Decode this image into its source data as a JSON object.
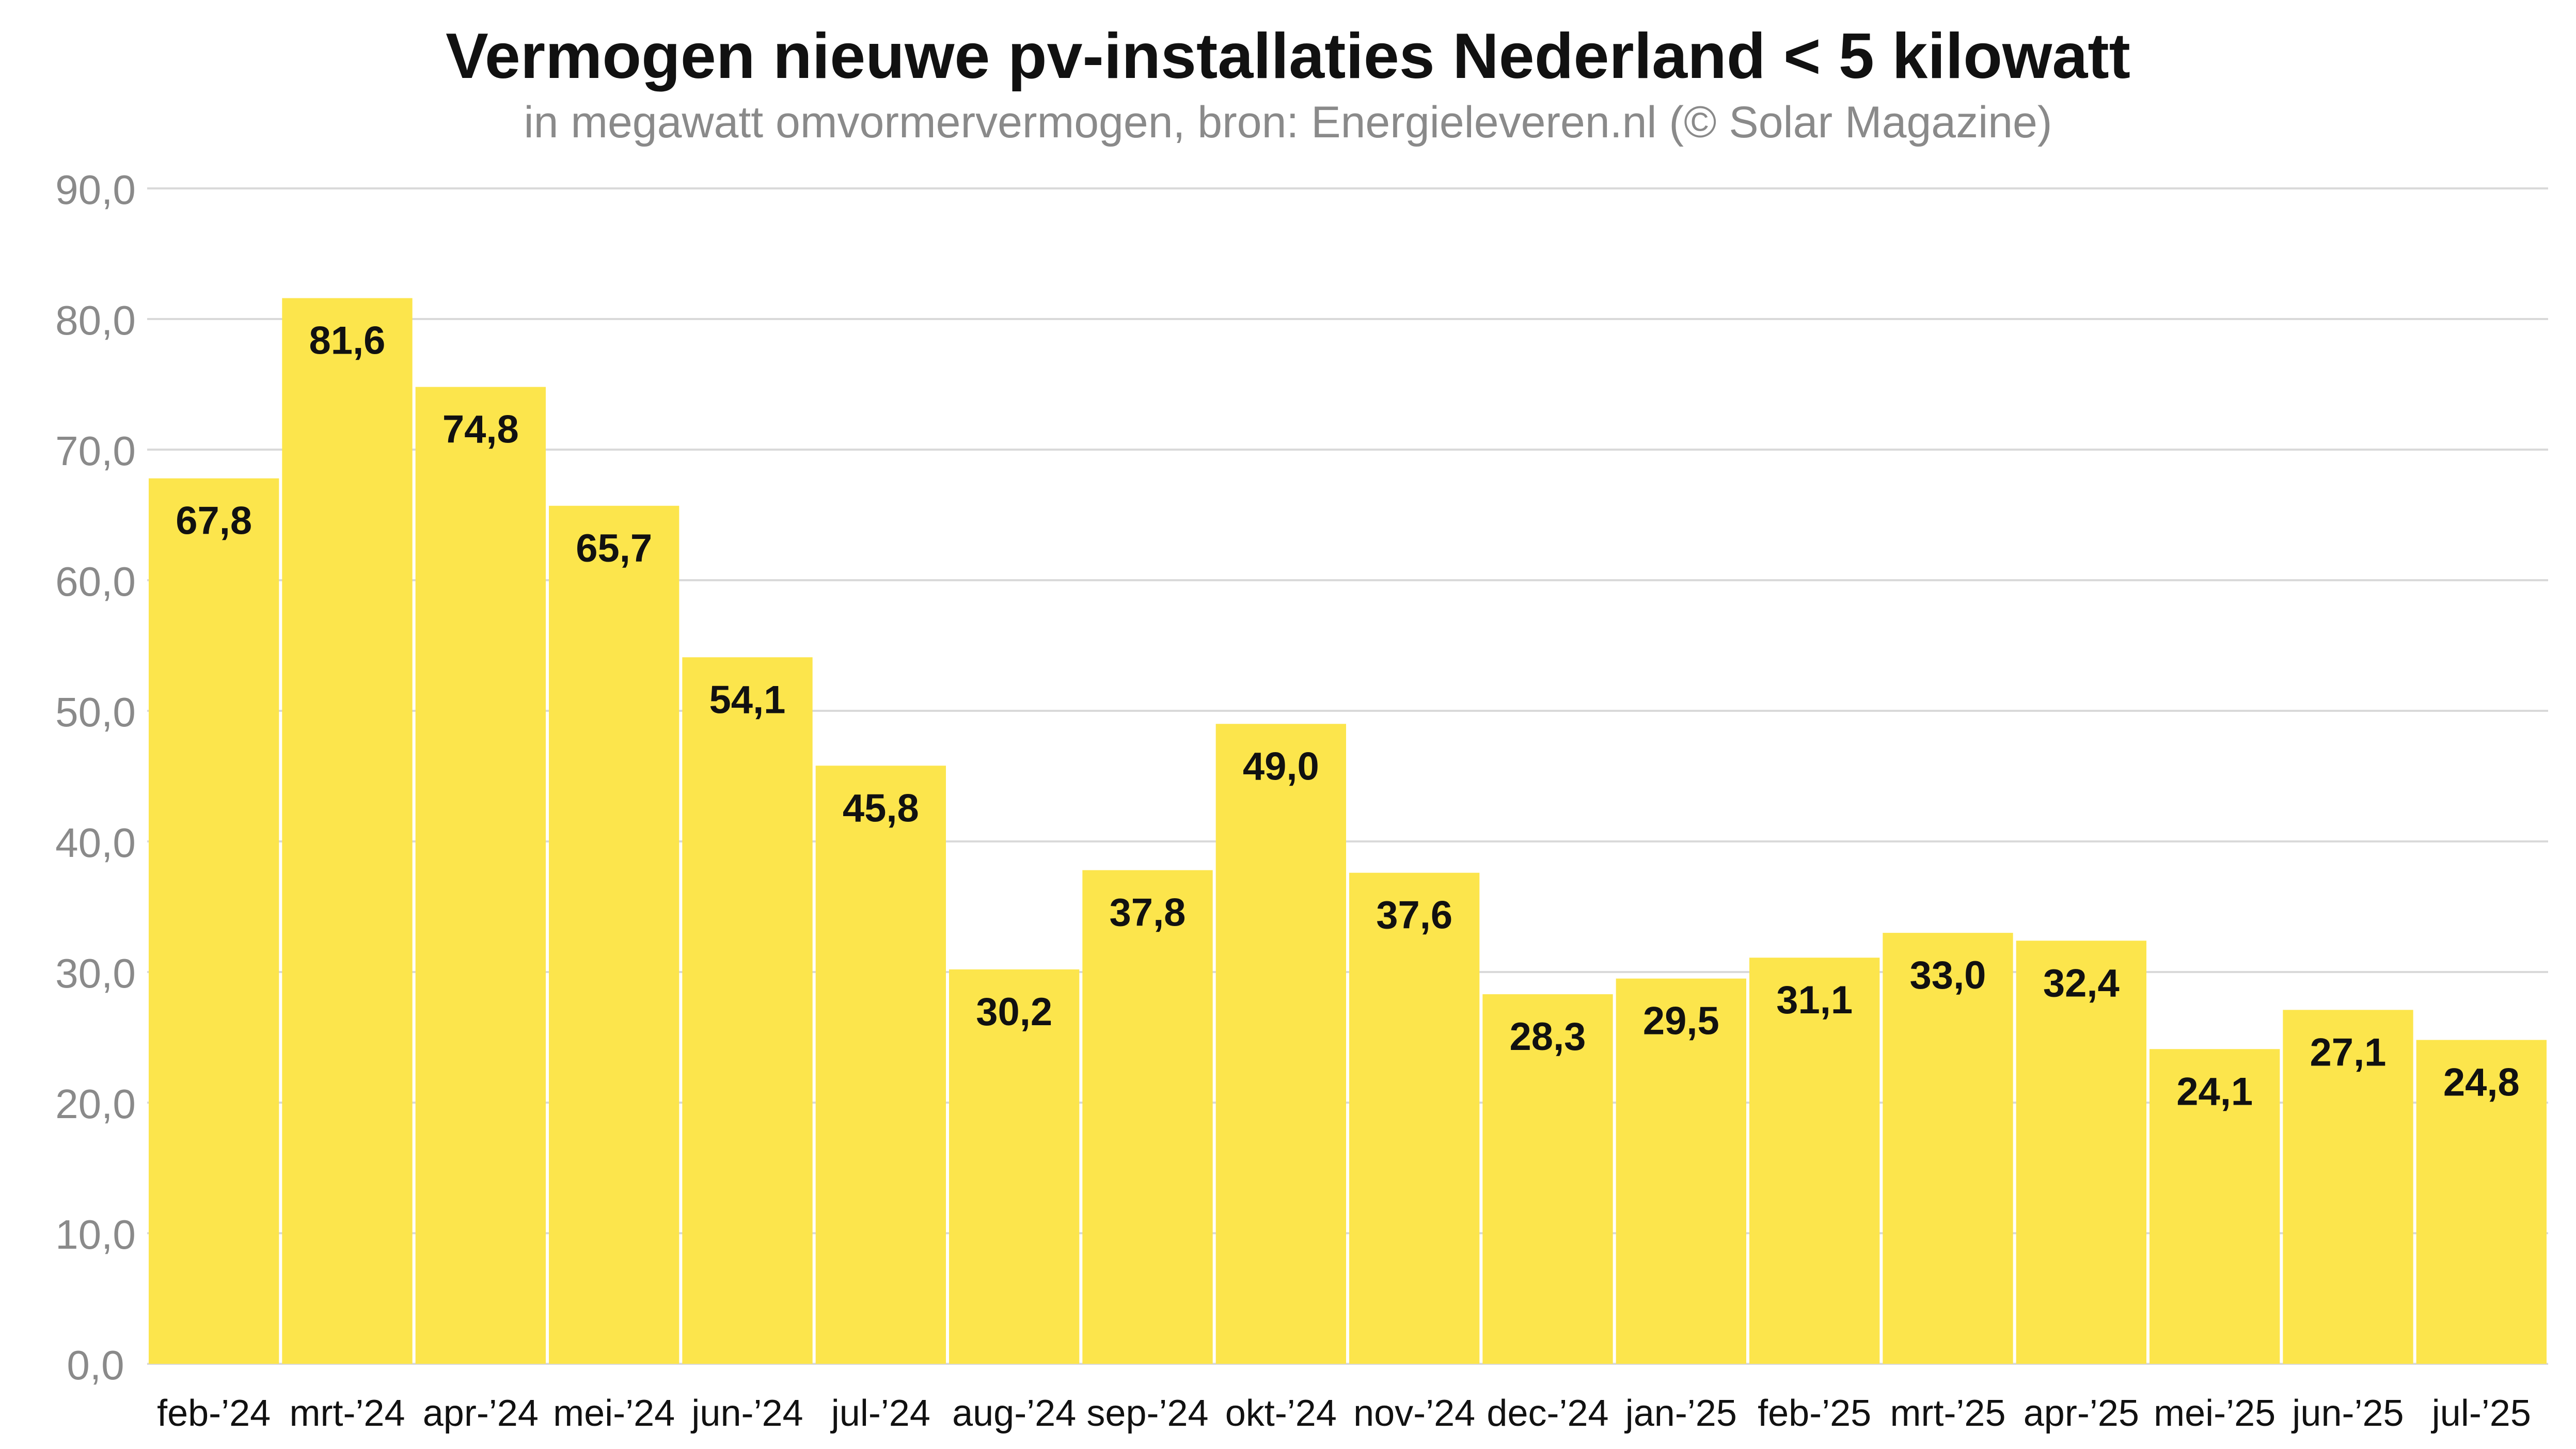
{
  "chart_data": {
    "type": "bar",
    "title": "Vermogen nieuwe pv-installaties Nederland < 5 kilowatt",
    "subtitle": "in megawatt omvormervermogen, bron: Energieleveren.nl (© Solar Magazine)",
    "xlabel": "",
    "ylabel": "",
    "categories": [
      "feb-’24",
      "mrt-’24",
      "apr-’24",
      "mei-’24",
      "jun-’24",
      "jul-’24",
      "aug-’24",
      "sep-’24",
      "okt-’24",
      "nov-’24",
      "dec-’24",
      "jan-’25",
      "feb-’25",
      "mrt-’25",
      "apr-’25",
      "mei-’25",
      "jun-’25",
      "jul-’25"
    ],
    "values": [
      67.8,
      81.6,
      74.8,
      65.7,
      54.1,
      45.8,
      30.2,
      37.8,
      49.0,
      37.6,
      28.3,
      29.5,
      31.1,
      33.0,
      32.4,
      24.1,
      27.1,
      24.8
    ],
    "data_labels": [
      "67,8",
      "81,6",
      "74,8",
      "65,7",
      "54,1",
      "45,8",
      "30,2",
      "37,8",
      "49,0",
      "37,6",
      "28,3",
      "29,5",
      "31,1",
      "33,0",
      "32,4",
      "24,1",
      "27,1",
      "24,8"
    ],
    "ylim": [
      0,
      90
    ],
    "yticks": [
      0,
      10,
      20,
      30,
      40,
      50,
      60,
      70,
      80,
      90
    ],
    "ytick_labels": [
      "0,0",
      "10,0",
      "20,0",
      "30,0",
      "40,0",
      "50,0",
      "60,0",
      "70,0",
      "80,0",
      "90,0"
    ],
    "grid": true,
    "legend": "none",
    "colors": {
      "bar": "#FCE54C",
      "grid": "#d9d9d9",
      "axis_text": "#8a8a8a",
      "label_text": "#111111"
    }
  }
}
